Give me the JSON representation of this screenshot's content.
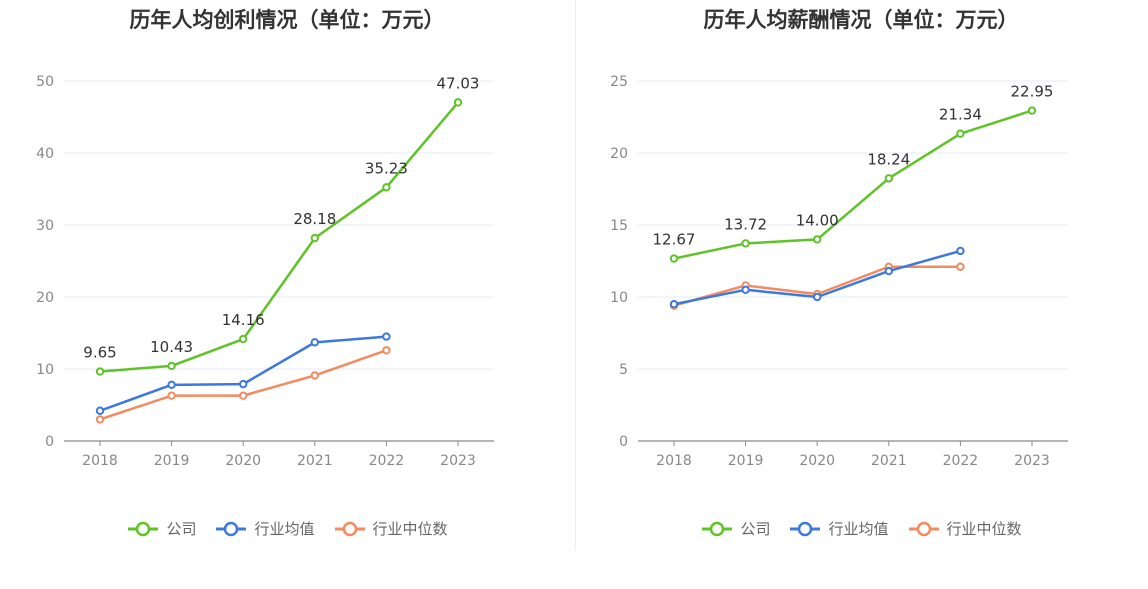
{
  "charts": [
    {
      "title": "历年人均创利情况（单位：万元）",
      "chart_data": {
        "type": "line",
        "categories": [
          "2018",
          "2019",
          "2020",
          "2021",
          "2022",
          "2023"
        ],
        "ylim": [
          0,
          50
        ],
        "yticks": [
          0,
          10,
          20,
          30,
          40,
          50
        ],
        "grid": true,
        "legend_position": "bottom",
        "series": [
          {
            "name": "公司",
            "color": "#5ec326",
            "values": [
              9.65,
              10.43,
              14.16,
              28.18,
              35.23,
              47.03
            ],
            "labels": [
              "9.65",
              "10.43",
              "14.16",
              "28.18",
              "35.23",
              "47.03"
            ]
          },
          {
            "name": "行业均值",
            "color": "#3b78e0",
            "values": [
              4.2,
              7.8,
              7.9,
              13.7,
              14.5,
              null
            ]
          },
          {
            "name": "行业中位数",
            "color": "#f58a5e",
            "values": [
              3.0,
              6.3,
              6.3,
              9.1,
              12.6,
              null
            ]
          }
        ]
      }
    },
    {
      "title": "历年人均薪酬情况（单位：万元）",
      "chart_data": {
        "type": "line",
        "categories": [
          "2018",
          "2019",
          "2020",
          "2021",
          "2022",
          "2023"
        ],
        "ylim": [
          0,
          25
        ],
        "yticks": [
          0,
          5,
          10,
          15,
          20,
          25
        ],
        "grid": true,
        "legend_position": "bottom",
        "series": [
          {
            "name": "公司",
            "color": "#5ec326",
            "values": [
              12.67,
              13.72,
              14.0,
              18.24,
              21.34,
              22.95
            ],
            "labels": [
              "12.67",
              "13.72",
              "14.00",
              "18.24",
              "21.34",
              "22.95"
            ]
          },
          {
            "name": "行业均值",
            "color": "#3b78e0",
            "values": [
              9.5,
              10.5,
              10.0,
              11.8,
              13.2,
              null
            ]
          },
          {
            "name": "行业中位数",
            "color": "#f58a5e",
            "values": [
              9.4,
              10.8,
              10.2,
              12.1,
              12.1,
              null
            ]
          }
        ]
      }
    }
  ]
}
